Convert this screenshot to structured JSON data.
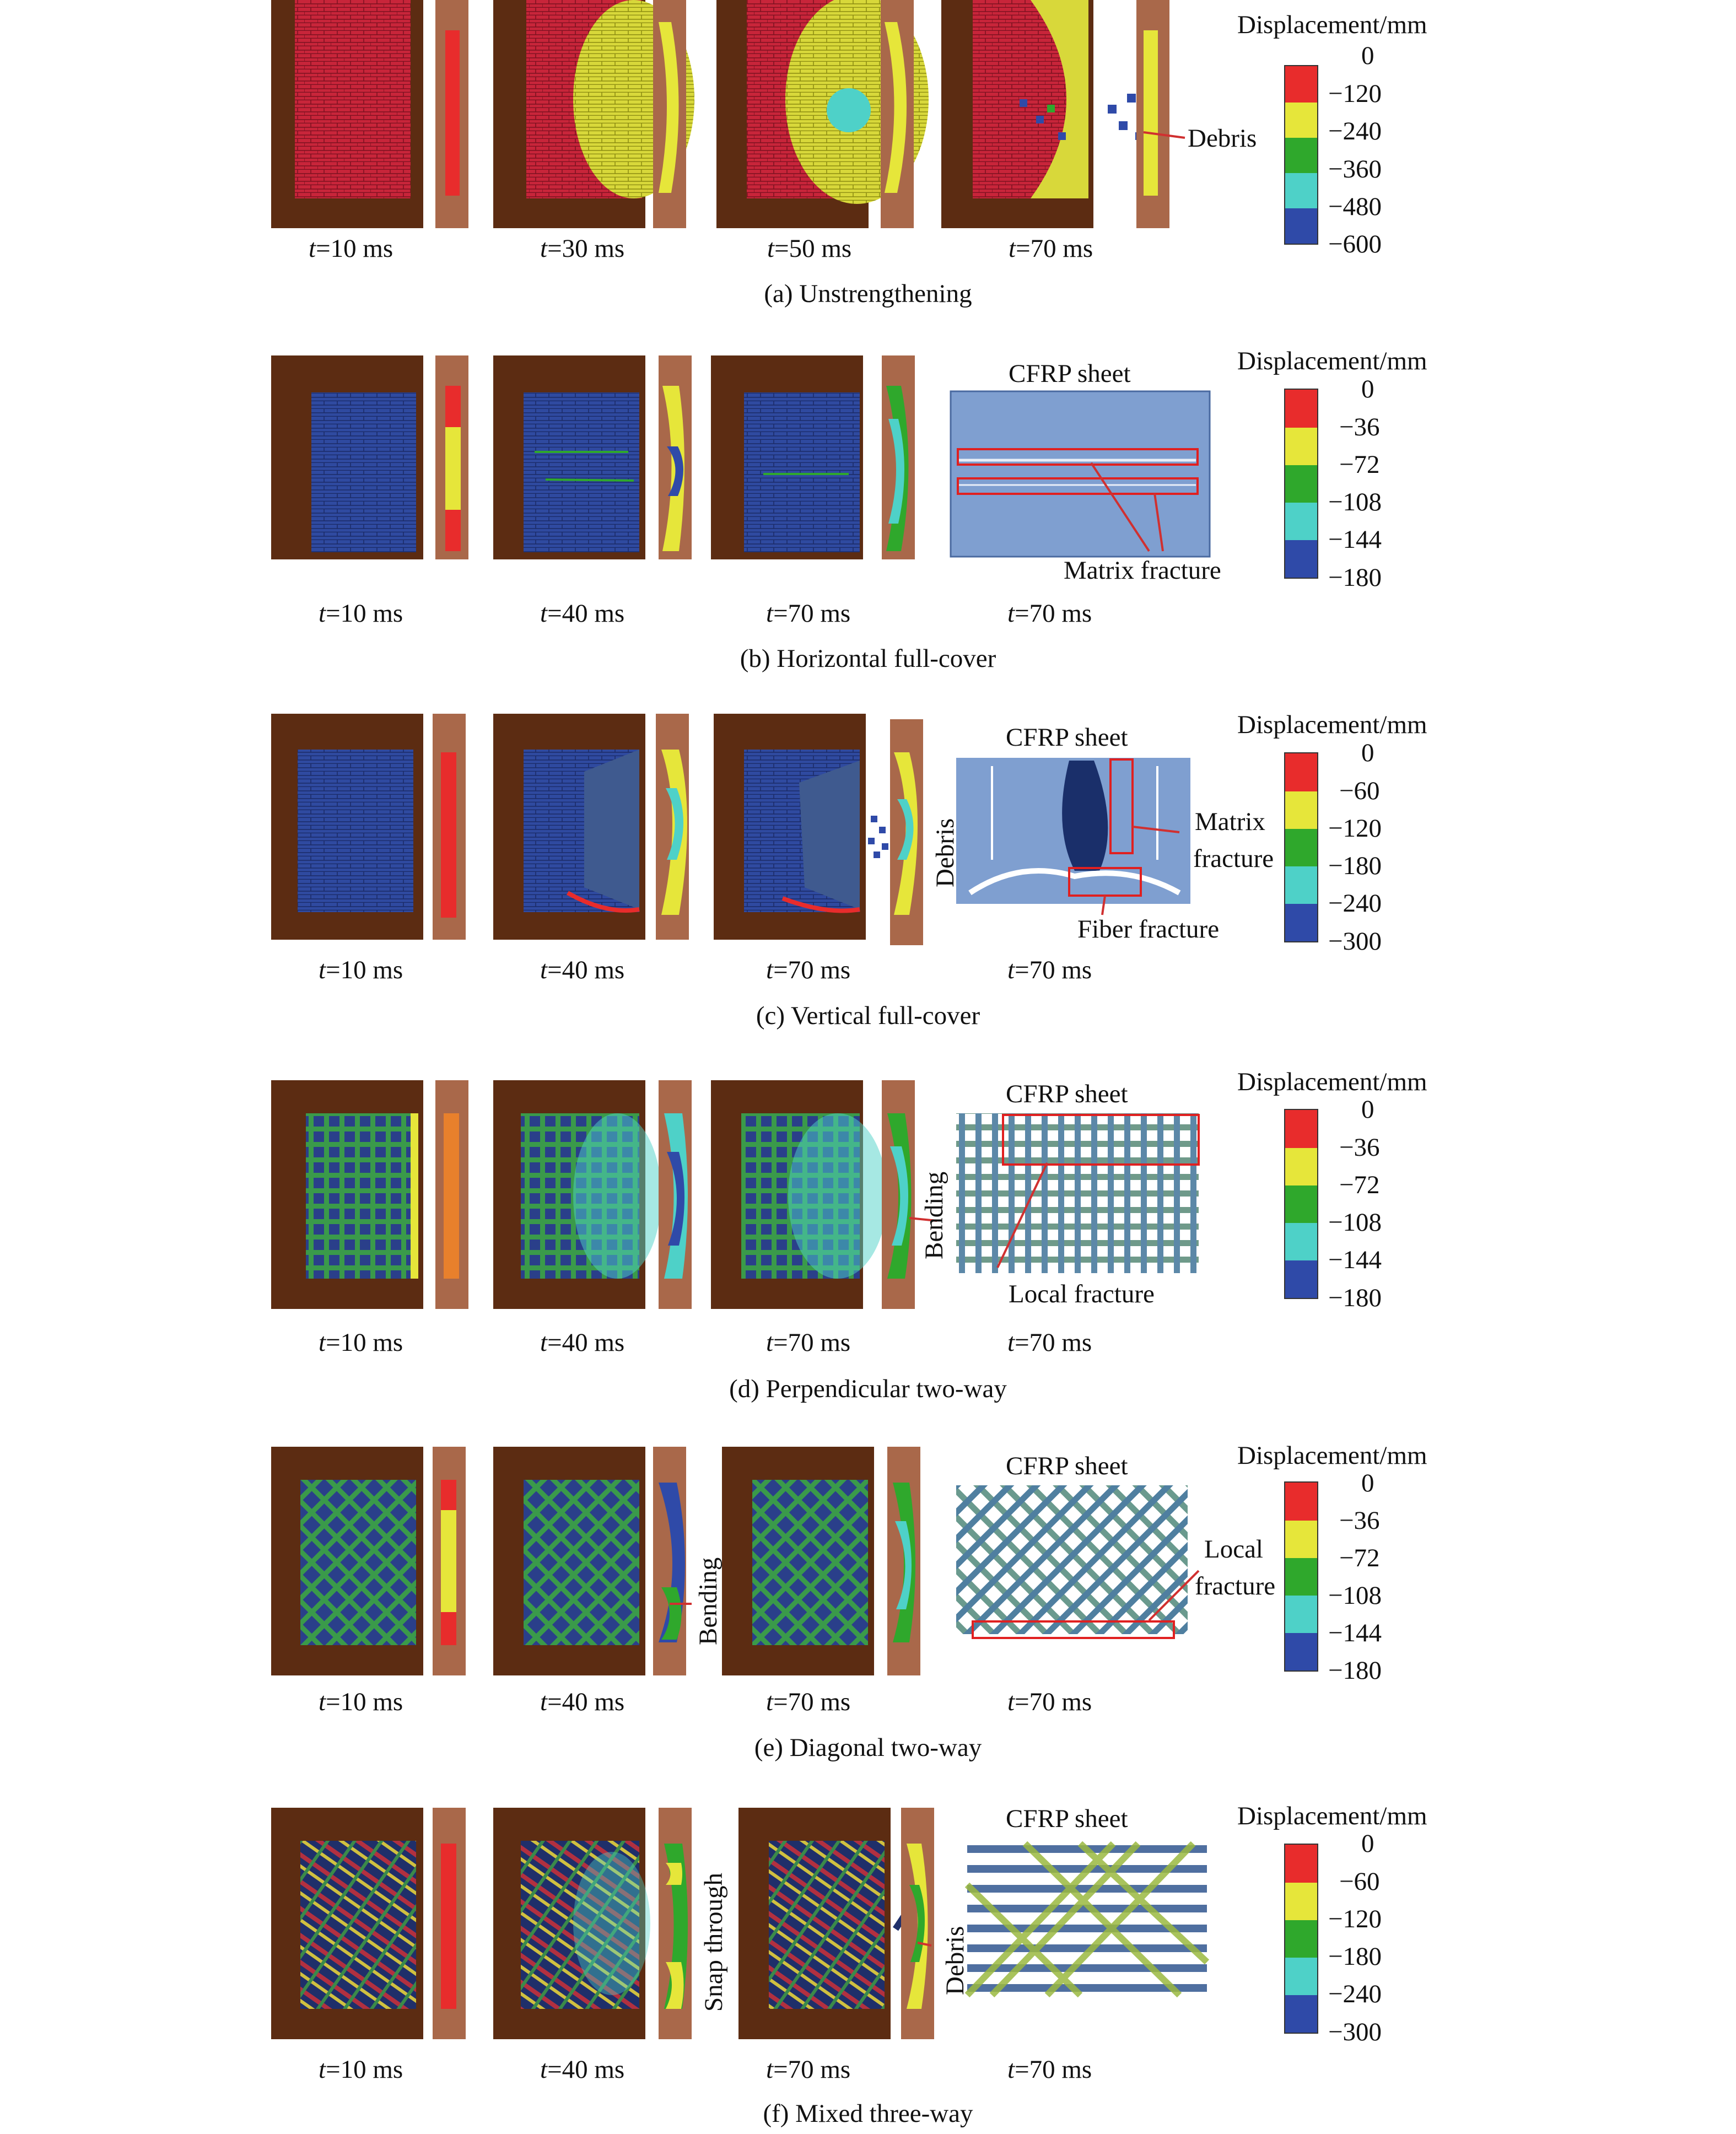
{
  "legend_title": "Displacement/mm",
  "colors": {
    "frame": "#5c2c12",
    "frame_light": "#a9684a",
    "red": "#e82c2c",
    "yellow": "#e6e63a",
    "green": "#2fa82c",
    "cyan": "#4ed1c8",
    "blue": "#2f4aa8",
    "sheet": "#7f9fd0"
  },
  "panels": [
    {
      "caption": "(a) Unstrengthening",
      "times": [
        "t=10 ms",
        "t=30 ms",
        "t=50 ms",
        "t=70 ms"
      ],
      "legend": [
        "0",
        "−120",
        "−240",
        "−360",
        "−480",
        "−600"
      ],
      "annotations": [
        "Debris"
      ]
    },
    {
      "caption": "(b) Horizontal full-cover",
      "times": [
        "t=10 ms",
        "t=40 ms",
        "t=70 ms",
        "t=70 ms"
      ],
      "sheet_title": "CFRP sheet",
      "legend": [
        "0",
        "−36",
        "−72",
        "−108",
        "−144",
        "−180"
      ],
      "annotations": [
        "Matrix fracture"
      ]
    },
    {
      "caption": "(c) Vertical full-cover",
      "times": [
        "t=10 ms",
        "t=40 ms",
        "t=70 ms",
        "t=70 ms"
      ],
      "sheet_title": "CFRP sheet",
      "legend": [
        "0",
        "−60",
        "−120",
        "−180",
        "−240",
        "−300"
      ],
      "annotations": [
        "Matrix",
        "fracture",
        "Fiber fracture",
        "Debris"
      ]
    },
    {
      "caption": "(d) Perpendicular two-way",
      "times": [
        "t=10 ms",
        "t=40 ms",
        "t=70 ms",
        "t=70 ms"
      ],
      "sheet_title": "CFRP sheet",
      "legend": [
        "0",
        "−36",
        "−72",
        "−108",
        "−144",
        "−180"
      ],
      "annotations": [
        "Local fracture",
        "Bending"
      ]
    },
    {
      "caption": "(e) Diagonal two-way",
      "times": [
        "t=10 ms",
        "t=40 ms",
        "t=70 ms",
        "t=70 ms"
      ],
      "sheet_title": "CFRP sheet",
      "legend": [
        "0",
        "−36",
        "−72",
        "−108",
        "−144",
        "−180"
      ],
      "annotations": [
        "Local",
        "fracture",
        "Bending"
      ]
    },
    {
      "caption": "(f) Mixed three-way",
      "times": [
        "t=10 ms",
        "t=40 ms",
        "t=70 ms",
        "t=70 ms"
      ],
      "sheet_title": "CFRP sheet",
      "legend": [
        "0",
        "−60",
        "−120",
        "−180",
        "−240",
        "−300"
      ],
      "annotations": [
        "Snap through",
        "Debris"
      ]
    }
  ]
}
